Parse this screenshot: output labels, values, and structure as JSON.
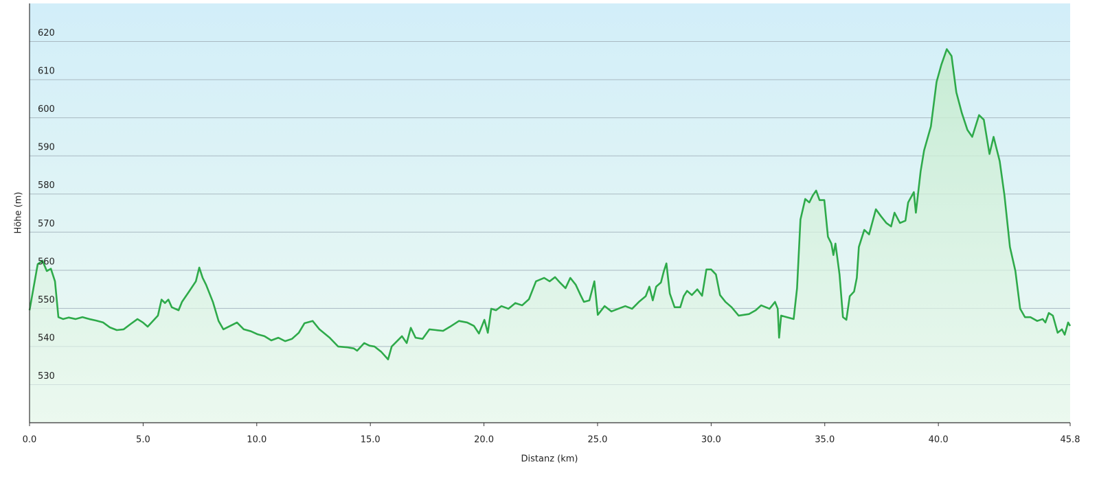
{
  "chart_data": {
    "type": "area",
    "x_label": "Distanz  (km)",
    "y_label": "Höhe (m)",
    "color": "#2eaa4a",
    "grid": true,
    "xlim": [
      0,
      45.8
    ],
    "ylim": [
      520,
      630
    ],
    "xticks": [
      {
        "value": 0,
        "label": "0.0"
      },
      {
        "value": 5,
        "label": "5.0"
      },
      {
        "value": 10,
        "label": "10.0"
      },
      {
        "value": 15,
        "label": "15.0"
      },
      {
        "value": 20,
        "label": "20.0"
      },
      {
        "value": 25,
        "label": "25.0"
      },
      {
        "value": 30,
        "label": "30.0"
      },
      {
        "value": 35,
        "label": "35.0"
      },
      {
        "value": 40,
        "label": "40.0"
      },
      45.8
    ],
    "yticks": [
      530,
      540,
      550,
      560,
      570,
      580,
      590,
      600,
      610,
      620
    ],
    "x": [
      0.0,
      0.36,
      0.57,
      0.76,
      0.94,
      1.12,
      1.27,
      1.48,
      1.72,
      2.03,
      2.33,
      2.63,
      2.93,
      3.24,
      3.54,
      3.84,
      4.14,
      4.45,
      4.75,
      4.99,
      5.2,
      5.65,
      5.81,
      5.96,
      6.11,
      6.26,
      6.56,
      6.71,
      7.02,
      7.32,
      7.47,
      7.62,
      7.77,
      8.07,
      8.32,
      8.53,
      8.83,
      9.13,
      9.43,
      9.74,
      10.04,
      10.34,
      10.64,
      10.95,
      11.25,
      11.55,
      11.85,
      12.1,
      12.46,
      12.76,
      13.21,
      13.58,
      13.97,
      14.27,
      14.42,
      14.73,
      14.97,
      15.18,
      15.48,
      15.78,
      15.94,
      16.39,
      16.6,
      16.78,
      16.99,
      17.3,
      17.6,
      18.2,
      18.51,
      18.9,
      19.26,
      19.56,
      19.78,
      20.02,
      20.17,
      20.32,
      20.53,
      20.77,
      21.08,
      21.38,
      21.68,
      21.98,
      22.29,
      22.65,
      22.89,
      23.13,
      23.34,
      23.59,
      23.8,
      24.04,
      24.25,
      24.4,
      24.64,
      24.86,
      25.01,
      25.31,
      25.61,
      25.91,
      26.22,
      26.52,
      26.82,
      27.12,
      27.28,
      27.43,
      27.58,
      27.79,
      27.91,
      28.03,
      28.18,
      28.39,
      28.64,
      28.79,
      28.94,
      29.15,
      29.39,
      29.6,
      29.79,
      30.0,
      30.21,
      30.39,
      30.63,
      30.9,
      31.21,
      31.66,
      31.96,
      32.2,
      32.57,
      32.81,
      32.93,
      32.99,
      33.08,
      33.32,
      33.63,
      33.78,
      33.93,
      34.14,
      34.32,
      34.47,
      34.62,
      34.77,
      34.98,
      35.14,
      35.29,
      35.38,
      35.47,
      35.65,
      35.8,
      35.95,
      36.1,
      36.29,
      36.41,
      36.5,
      36.74,
      36.95,
      37.25,
      37.47,
      37.71,
      37.92,
      38.07,
      38.31,
      38.55,
      38.67,
      38.92,
      39.01,
      39.22,
      39.37,
      39.67,
      39.92,
      40.13,
      40.37,
      40.58,
      40.79,
      41.03,
      41.28,
      41.49,
      41.79,
      42.0,
      42.25,
      42.43,
      42.7,
      42.91,
      43.15,
      43.39,
      43.6,
      43.81,
      44.05,
      44.35,
      44.59,
      44.71,
      44.86,
      45.04,
      45.25,
      45.44,
      45.56,
      45.71,
      45.8
    ],
    "values": [
      549.5,
      561.6,
      562.5,
      559.8,
      560.4,
      557.1,
      547.7,
      547.2,
      547.6,
      547.2,
      547.7,
      547.2,
      546.8,
      546.3,
      545.0,
      544.3,
      544.5,
      545.9,
      547.2,
      546.3,
      545.2,
      548.1,
      552.3,
      551.4,
      552.3,
      550.3,
      549.5,
      551.7,
      554.4,
      557.1,
      560.7,
      558.0,
      556.2,
      551.7,
      546.7,
      544.5,
      545.4,
      546.3,
      544.5,
      544.0,
      543.2,
      542.7,
      541.6,
      542.3,
      541.4,
      542.0,
      543.6,
      546.1,
      546.7,
      544.5,
      542.3,
      540.0,
      539.8,
      539.5,
      538.9,
      540.9,
      540.2,
      540.0,
      538.6,
      536.6,
      540.0,
      542.7,
      540.9,
      544.9,
      542.3,
      542.0,
      544.5,
      544.1,
      545.2,
      546.7,
      546.3,
      545.4,
      543.4,
      547.0,
      543.6,
      549.9,
      549.5,
      550.6,
      549.9,
      551.4,
      550.8,
      552.4,
      557.1,
      558.0,
      557.1,
      558.2,
      556.8,
      555.3,
      558.0,
      556.2,
      553.5,
      551.7,
      552.1,
      557.1,
      548.3,
      550.6,
      549.2,
      549.9,
      550.6,
      549.9,
      551.7,
      553.2,
      555.7,
      552.1,
      555.7,
      556.8,
      559.6,
      561.8,
      553.9,
      550.3,
      550.3,
      553.2,
      554.6,
      553.5,
      555.0,
      553.3,
      560.2,
      560.2,
      558.9,
      553.5,
      551.7,
      550.3,
      548.1,
      548.5,
      549.5,
      550.8,
      549.9,
      551.7,
      549.9,
      542.3,
      548.1,
      547.7,
      547.2,
      555.3,
      573.3,
      578.7,
      577.8,
      579.6,
      580.9,
      578.4,
      578.4,
      568.8,
      567.0,
      564.0,
      567.0,
      558.9,
      547.7,
      547.0,
      553.2,
      554.4,
      558.0,
      566.1,
      570.6,
      569.4,
      576.0,
      574.2,
      572.4,
      571.5,
      575.1,
      572.4,
      573.0,
      577.8,
      580.5,
      575.1,
      586.0,
      591.4,
      597.7,
      609.4,
      613.9,
      618.0,
      616.2,
      606.7,
      601.3,
      596.8,
      595.0,
      600.7,
      599.5,
      590.5,
      595.0,
      588.6,
      579.6,
      566.1,
      559.8,
      549.9,
      547.7,
      547.7,
      546.7,
      547.2,
      546.3,
      548.8,
      548.1,
      543.6,
      544.5,
      543.1,
      546.3,
      545.4
    ]
  }
}
